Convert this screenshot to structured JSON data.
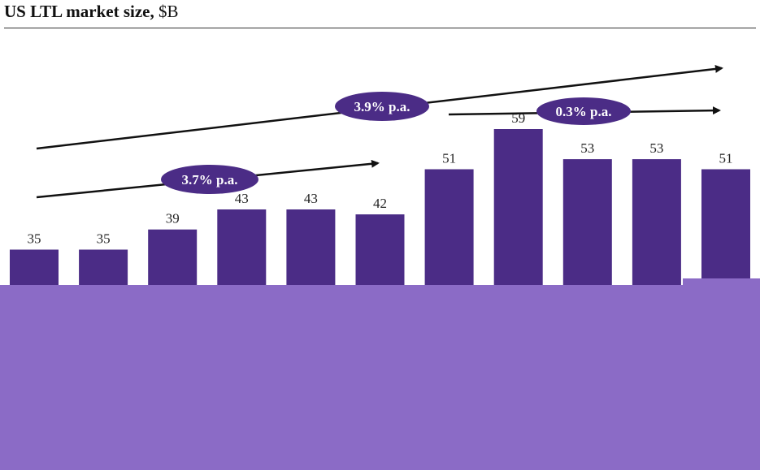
{
  "title": {
    "bold": "US LTL market size,",
    "unit": "$B"
  },
  "colors": {
    "bar": "#4b2c86",
    "overlay": "#8b6bc6",
    "arrow": "#111111"
  },
  "chart_data": {
    "type": "bar",
    "title": "US LTL market size, $B",
    "values": [
      35,
      35,
      39,
      43,
      43,
      42,
      51,
      59,
      53,
      53,
      51
    ],
    "ylim": [
      0,
      60
    ],
    "grid": false,
    "annotations": [
      {
        "label": "3.7% p.a.",
        "from_index": 0,
        "to_index": 5
      },
      {
        "label": "3.9% p.a.",
        "from_index": 0,
        "to_index": 10
      },
      {
        "label": "0.3% p.a.",
        "from_index": 6,
        "to_index": 10
      }
    ]
  }
}
